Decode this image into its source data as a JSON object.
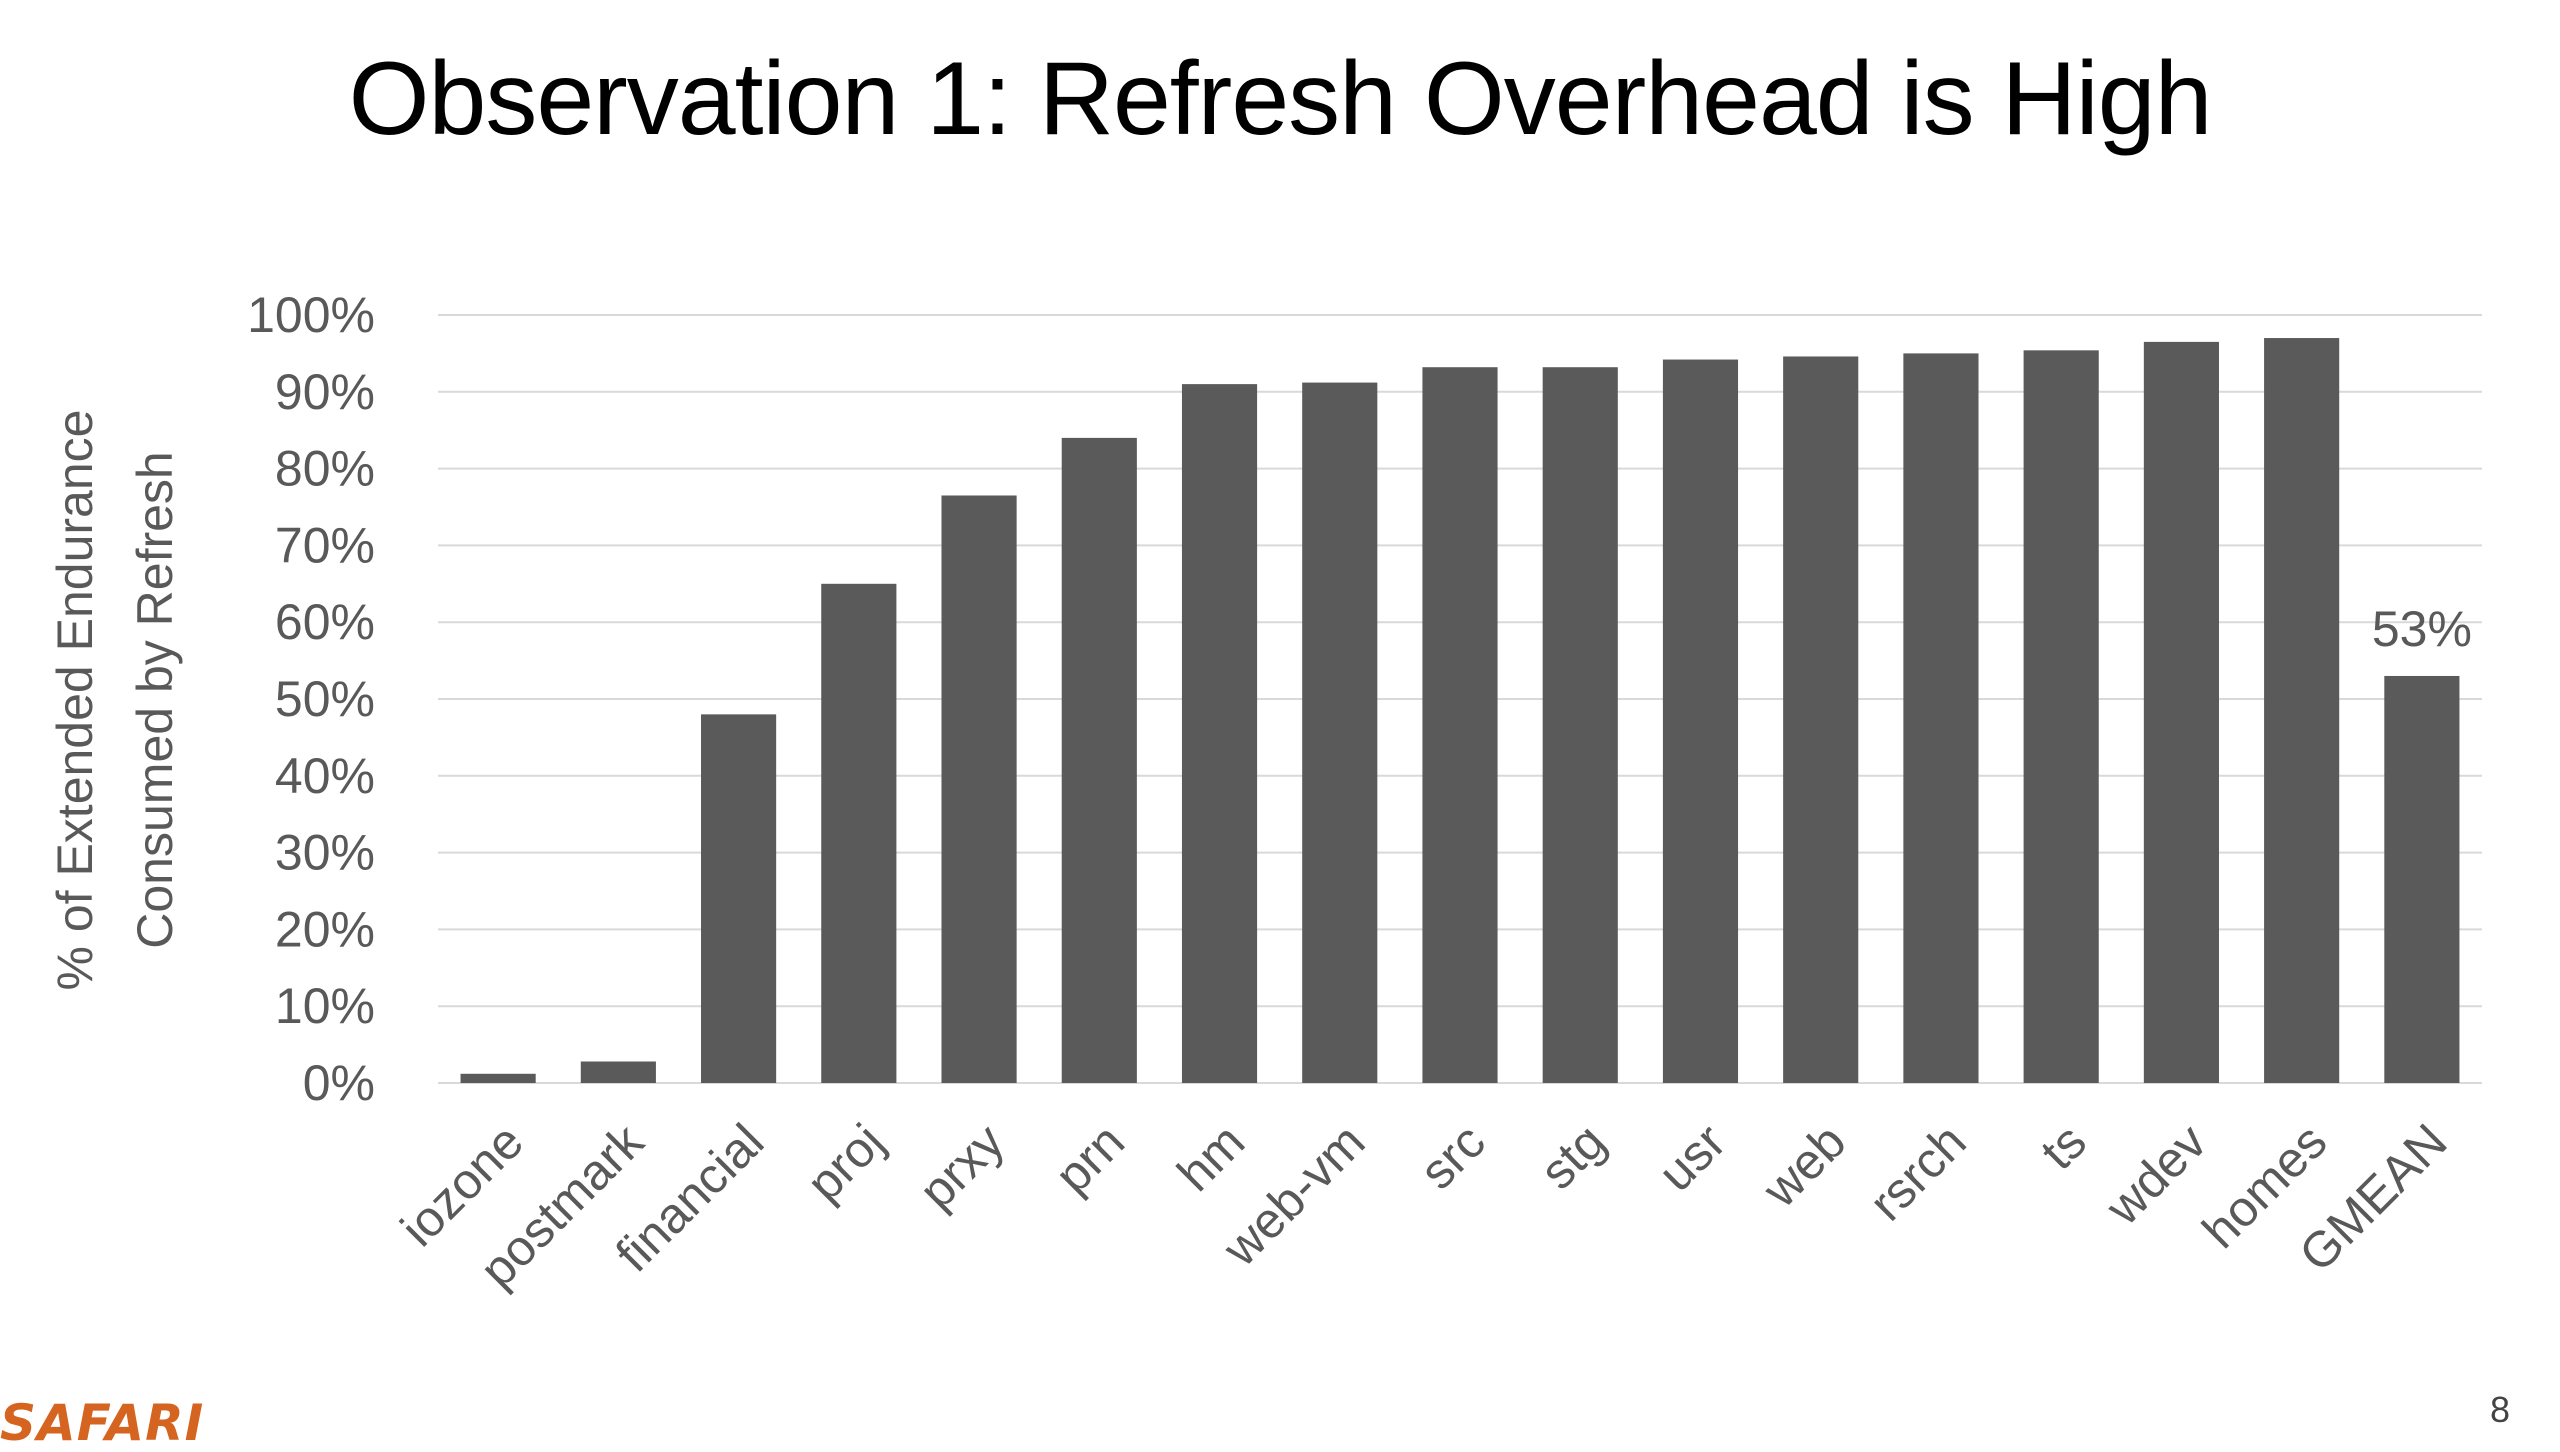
{
  "slide": {
    "title": "Observation 1: Refresh Overhead is High",
    "logo_text": "SAFARI",
    "page_number": "8"
  },
  "colors": {
    "bar": "#5a5a5a",
    "grid": "#d9d9d9",
    "tick_text": "#595959",
    "logo": "#d4641f"
  },
  "chart_data": {
    "type": "bar",
    "title": "",
    "xlabel": "",
    "ylabel_lines": [
      "% of Extended Endurance",
      "Consumed by Refresh"
    ],
    "ylim": [
      0,
      100
    ],
    "y_ticks": [
      0,
      10,
      20,
      30,
      40,
      50,
      60,
      70,
      80,
      90,
      100
    ],
    "y_tick_labels": [
      "0%",
      "10%",
      "20%",
      "30%",
      "40%",
      "50%",
      "60%",
      "70%",
      "80%",
      "90%",
      "100%"
    ],
    "grid": true,
    "legend": "none",
    "categories": [
      "iozone",
      "postmark",
      "financial",
      "proj",
      "prxy",
      "prn",
      "hm",
      "web-vm",
      "src",
      "stg",
      "usr",
      "web",
      "rsrch",
      "ts",
      "wdev",
      "homes",
      "GMEAN"
    ],
    "values": [
      1.2,
      2.8,
      48,
      65,
      76.5,
      84,
      91,
      91.2,
      93.2,
      93.2,
      94.2,
      94.6,
      95,
      95.4,
      96.5,
      97,
      53
    ],
    "data_labels": [
      {
        "category": "GMEAN",
        "text": "53%"
      }
    ]
  }
}
